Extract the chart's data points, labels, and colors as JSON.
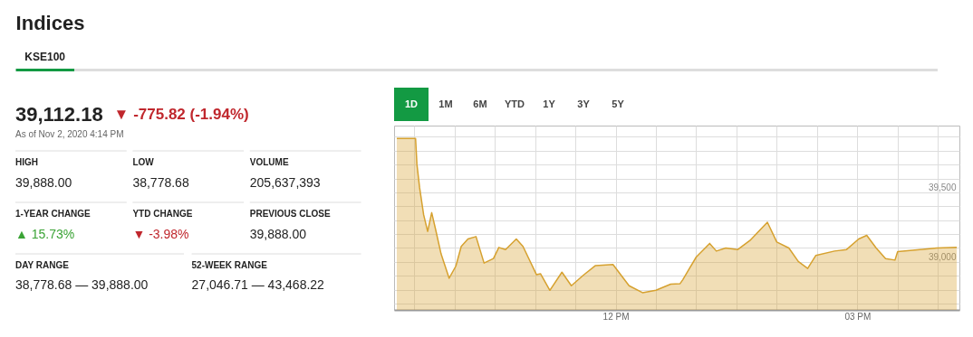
{
  "chart_data": [
    {
      "type": "other",
      "title": "Indices",
      "annotations": [
        "KSE100",
        "39,112.18",
        "▼ -775.82 (-1.94%)",
        "As of Nov 2, 2020 4:14 PM",
        "HIGH",
        "39,888.00",
        "LOW",
        "38,778.68",
        "VOLUME",
        "205,637,393",
        "1-YEAR CHANGE",
        "▲ 15.73%",
        "YTD CHANGE",
        "▼ -3.98%",
        "PREVIOUS CLOSE",
        "39,888.00",
        "DAY RANGE",
        "38,778.68 — 39,888.00",
        "52-WEEK RANGE",
        "27,046.71 — 43,468.22"
      ]
    },
    {
      "type": "area",
      "annotations": [
        "1D",
        "1M",
        "6M",
        "YTD",
        "1Y",
        "3Y",
        "5Y"
      ],
      "x": [
        "2020-11-02T09:17",
        "2020-11-02T09:31",
        "2020-11-02T09:32",
        "2020-11-02T09:34",
        "2020-11-02T09:37",
        "2020-11-02T09:40",
        "2020-11-02T09:43",
        "2020-11-02T09:46",
        "2020-11-02T09:50",
        "2020-11-02T09:56",
        "2020-11-02T10:01",
        "2020-11-02T10:05",
        "2020-11-02T10:10",
        "2020-11-02T10:16",
        "2020-11-02T10:22",
        "2020-11-02T10:29",
        "2020-11-02T10:33",
        "2020-11-02T10:38",
        "2020-11-02T10:46",
        "2020-11-02T10:51",
        "2020-11-02T11:01",
        "2020-11-02T11:04",
        "2020-11-02T11:11",
        "2020-11-02T11:20",
        "2020-11-02T11:27",
        "2020-11-02T11:36",
        "2020-11-02T11:45",
        "2020-11-02T11:58",
        "2020-11-02T12:10",
        "2020-11-02T12:20",
        "2020-11-02T12:30",
        "2020-11-02T12:41",
        "2020-11-02T12:48",
        "2020-11-02T12:50",
        "2020-11-02T13:00",
        "2020-11-02T13:10",
        "2020-11-02T13:15",
        "2020-11-02T13:22",
        "2020-11-02T13:31",
        "2020-11-02T13:40",
        "2020-11-02T13:53",
        "2020-11-02T14:00",
        "2020-11-02T14:09",
        "2020-11-02T14:16",
        "2020-11-02T14:23",
        "2020-11-02T14:29",
        "2020-11-02T14:43",
        "2020-11-02T14:52",
        "2020-11-02T15:01",
        "2020-11-02T15:07",
        "2020-11-02T15:14",
        "2020-11-02T15:21",
        "2020-11-02T15:28",
        "2020-11-02T15:30",
        "2020-11-02T15:59",
        "2020-11-02T16:14"
      ],
      "series": [
        {
          "type": "area",
          "color": "#d6a12f",
          "values": [
            39888,
            39888,
            39703,
            39534,
            39339,
            39219,
            39354,
            39230,
            39057,
            38883,
            38970,
            39111,
            39165,
            39182,
            38992,
            39024,
            39104,
            39089,
            39165,
            39111,
            38909,
            38915,
            38796,
            38926,
            38829,
            38905,
            38974,
            38981,
            38829,
            38779,
            38796,
            38840,
            38844,
            38872,
            39035,
            39133,
            39078,
            39100,
            39089,
            39154,
            39285,
            39143,
            39100,
            39003,
            38953,
            39046,
            39078,
            39089,
            39165,
            39191,
            39100,
            39024,
            39013,
            39074,
            39100,
            39104
          ]
        }
      ],
      "xlim": [
        "2020-11-02T09:15",
        "2020-11-02T16:16"
      ],
      "xticks": [
        {
          "value": "2020-11-02T09:30",
          "label": null
        },
        {
          "value": "2020-11-02T10:00",
          "label": null
        },
        {
          "value": "2020-11-02T10:30",
          "label": null
        },
        {
          "value": "2020-11-02T11:00",
          "label": null
        },
        {
          "value": "2020-11-02T11:30",
          "label": null
        },
        {
          "value": "2020-11-02T12:00",
          "label": "12 PM"
        },
        {
          "value": "2020-11-02T12:30",
          "label": null
        },
        {
          "value": "2020-11-02T13:00",
          "label": null
        },
        {
          "value": "2020-11-02T13:30",
          "label": null
        },
        {
          "value": "2020-11-02T14:00",
          "label": null
        },
        {
          "value": "2020-11-02T14:30",
          "label": null
        },
        {
          "value": "2020-11-02T15:00",
          "label": "03 PM"
        },
        {
          "value": "2020-11-02T15:30",
          "label": null
        },
        {
          "value": "2020-11-02T16:00",
          "label": null
        }
      ],
      "ylim": [
        38655,
        39980
      ],
      "yticks": [
        {
          "value": 38700,
          "label": null
        },
        {
          "value": 38800,
          "label": null
        },
        {
          "value": 38900,
          "label": null
        },
        {
          "value": 39000,
          "label": "39,000"
        },
        {
          "value": 39100,
          "label": null
        },
        {
          "value": 39200,
          "label": null
        },
        {
          "value": 39300,
          "label": null
        },
        {
          "value": 39400,
          "label": null
        },
        {
          "value": 39500,
          "label": "39,500"
        },
        {
          "value": 39600,
          "label": null
        },
        {
          "value": 39700,
          "label": null
        },
        {
          "value": 39800,
          "label": null
        },
        {
          "value": 39900,
          "label": null
        }
      ],
      "grid": true
    }
  ]
}
